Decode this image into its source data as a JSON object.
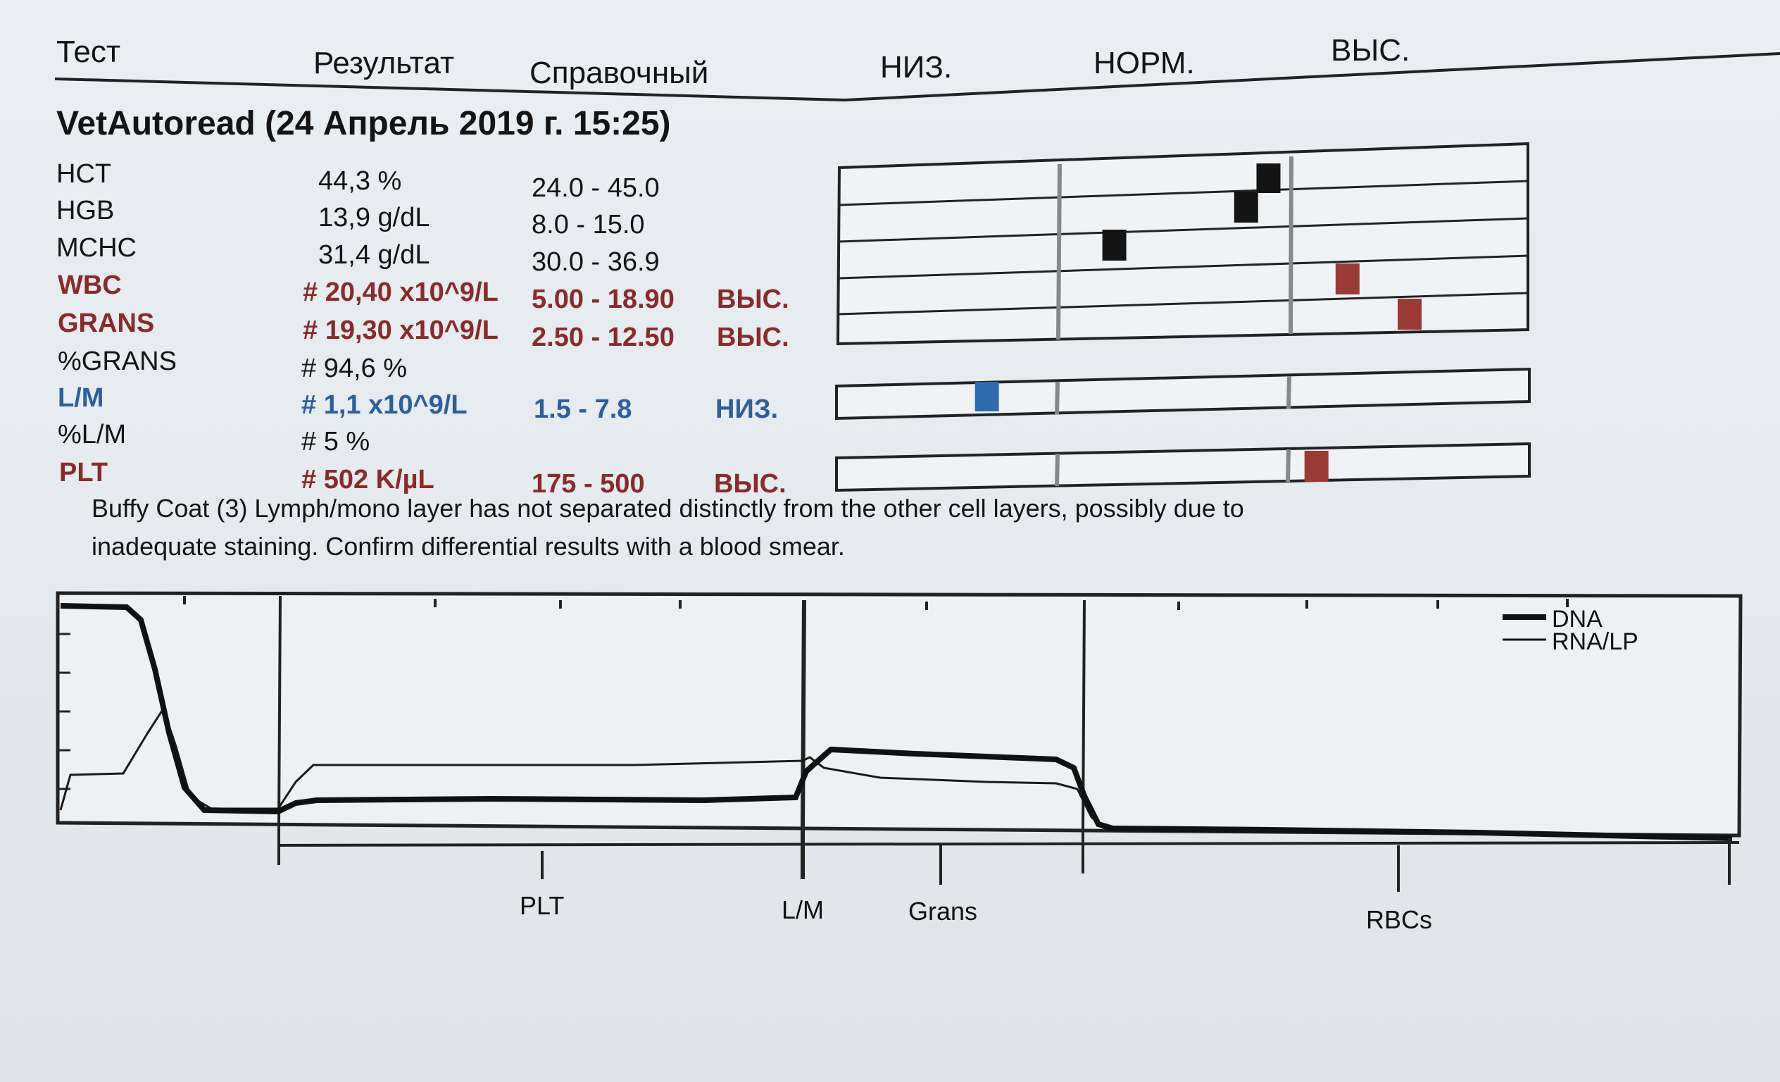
{
  "header": {
    "test": "Тест",
    "result": "Результат",
    "reference": "Справочный",
    "low": "НИЗ.",
    "normal": "НОРМ.",
    "high": "ВЫС."
  },
  "title": "VetAutoread (24 Апрель 2019 г. 15:25)",
  "rows": [
    {
      "name": "HCT",
      "result": "44,3 %",
      "range": "24.0 - 45.0",
      "flag": "",
      "level": 0.96,
      "status": "normal"
    },
    {
      "name": "HGB",
      "result": "13,9 g/dL",
      "range": "8.0 - 15.0",
      "flag": "",
      "level": 0.85,
      "status": "normal"
    },
    {
      "name": "MCHC",
      "result": "31,4 g/dL",
      "range": "30.0 - 36.9",
      "flag": "",
      "level": 0.2,
      "status": "normal"
    },
    {
      "name": "WBC",
      "result": "# 20,40 x10^9/L",
      "range": "5.00 - 18.90",
      "flag": "ВЫС.",
      "level": 0.2,
      "status": "high"
    },
    {
      "name": "GRANS",
      "result": "# 19,30 x10^9/L",
      "range": "2.50 - 12.50",
      "flag": "ВЫС.",
      "level": 0.5,
      "status": "high"
    },
    {
      "name": "%GRANS",
      "result": "# 94,6 %",
      "range": "",
      "flag": "",
      "status": "none"
    },
    {
      "name": "L/M",
      "result": "# 1,1 x10^9/L",
      "range": "1.5 - 7.8",
      "flag": "НИЗ.",
      "level": 0.7,
      "status": "low"
    },
    {
      "name": "%L/M",
      "result": "# 5 %",
      "range": "",
      "flag": "",
      "status": "none"
    },
    {
      "name": "PLT",
      "result": "# 502 K/µL",
      "range": "175 - 500",
      "flag": "ВЫС.",
      "level": 0.05,
      "status": "high"
    }
  ],
  "note": {
    "line1": "Buffy Coat (3)  Lymph/mono layer has not separated distinctly from the other cell  layers, possibly due to",
    "line2": "inadequate staining.  Confirm differential  results with a blood smear."
  },
  "chart_data": {
    "type": "line",
    "legend": [
      "DNA",
      "RNA/LP"
    ],
    "legend_position": "top-right",
    "x_regions": [
      "PLT",
      "L/M",
      "Grans",
      "RBCs"
    ]
  },
  "colors": {
    "normal_marker": "#141414",
    "high_marker": "#9b3a34",
    "low_marker": "#2f6bb0"
  }
}
